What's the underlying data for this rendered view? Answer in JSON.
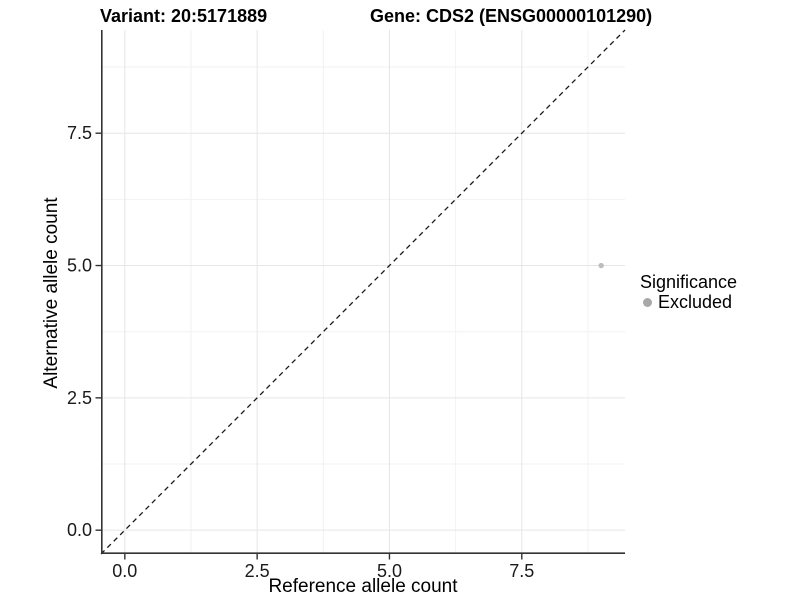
{
  "titles": {
    "variant": "Variant: 20:5171889",
    "gene": "Gene: CDS2 (ENSG00000101290)"
  },
  "chart_data": {
    "type": "scatter",
    "title": "Variant: 20:5171889  Gene: CDS2 (ENSG00000101290)",
    "xlabel": "Reference allele count",
    "ylabel": "Alternative allele count",
    "xlim": [
      -0.45,
      9.45
    ],
    "ylim": [
      -0.45,
      9.45
    ],
    "x_ticks": [
      0.0,
      2.5,
      5.0,
      7.5
    ],
    "x_tick_labels": [
      "0.0",
      "2.5",
      "5.0",
      "7.5"
    ],
    "y_ticks": [
      0.0,
      2.5,
      5.0,
      7.5
    ],
    "y_tick_labels": [
      "0.0",
      "2.5",
      "5.0",
      "7.5"
    ],
    "minor_ticks": [
      1.25,
      3.75,
      6.25,
      8.75
    ],
    "grid": true,
    "reference_line": {
      "type": "identity",
      "style": "dashed",
      "color": "#1a1a1a"
    },
    "series": [
      {
        "name": "Excluded",
        "color": "#bdbdbd",
        "point_radius": 2.7,
        "points": [
          {
            "x": 9,
            "y": 5
          }
        ]
      }
    ],
    "legend": {
      "title": "Significance",
      "position": "right",
      "items": [
        {
          "label": "Excluded",
          "color": "#a8a8a8"
        }
      ]
    },
    "colors": {
      "axis_line": "#333333",
      "grid_major": "#e6e6e6",
      "grid_minor": "#f2f2f2",
      "tick_text": "#1a1a1a"
    }
  }
}
